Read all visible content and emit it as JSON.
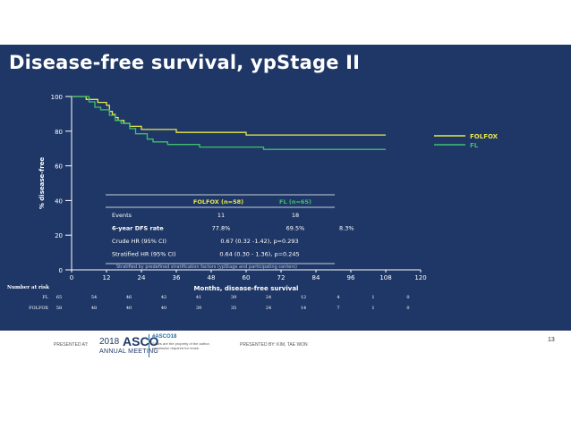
{
  "slide": {
    "title": "Disease-free survival, ypStage II",
    "bg_color": "#1f3766"
  },
  "chart_data": {
    "type": "line",
    "subtype": "kaplan-meier",
    "xlabel": "Months, disease-free survival",
    "ylabel": "% disease-free",
    "xlim": [
      0,
      120
    ],
    "ylim": [
      0,
      100
    ],
    "xticks": [
      0,
      12,
      24,
      36,
      48,
      60,
      72,
      84,
      96,
      108,
      120
    ],
    "yticks": [
      0,
      20,
      40,
      60,
      80,
      100
    ],
    "grid": false,
    "legend_position": "right",
    "series": [
      {
        "name": "FOLFOX",
        "color": "#e8e84a",
        "x": [
          0,
          5,
          5,
          9,
          9,
          12,
          12,
          13,
          13,
          14,
          14,
          15,
          15,
          16,
          16,
          18,
          18,
          20,
          20,
          24,
          24,
          36,
          36,
          48,
          48,
          60,
          60,
          72,
          72,
          84,
          84,
          96,
          96,
          108
        ],
        "y": [
          100,
          100,
          98.3,
          98.3,
          96.6,
          96.6,
          94.9,
          94.9,
          91.4,
          91.4,
          89.7,
          89.7,
          87.9,
          87.9,
          86.2,
          86.2,
          84.5,
          84.5,
          82.8,
          82.8,
          81.0,
          81.0,
          79.3,
          79.3,
          79.3,
          79.3,
          77.8,
          77.8,
          77.8,
          77.8,
          77.8,
          77.8,
          77.8,
          77.8
        ]
      },
      {
        "name": "FL",
        "color": "#3fbf6e",
        "x": [
          0,
          6,
          6,
          8,
          8,
          10,
          10,
          13,
          13,
          15,
          15,
          17,
          17,
          20,
          20,
          22,
          22,
          26,
          26,
          28,
          28,
          33,
          33,
          44,
          44,
          58,
          58,
          66,
          66,
          84,
          84,
          96,
          96,
          108
        ],
        "y": [
          100,
          100,
          96.9,
          96.9,
          93.8,
          93.8,
          92.3,
          92.3,
          89.2,
          89.2,
          86.2,
          86.2,
          84.6,
          84.6,
          81.5,
          81.5,
          78.5,
          78.5,
          75.4,
          75.4,
          73.8,
          73.8,
          72.3,
          72.3,
          70.8,
          70.8,
          70.8,
          70.8,
          69.5,
          69.5,
          69.5,
          69.5,
          69.5,
          69.5
        ]
      }
    ],
    "table": {
      "headers": [
        "",
        "FOLFOX (n=58)",
        "FL (n=65)"
      ],
      "rows": [
        [
          "Events",
          "11",
          "18"
        ],
        [
          "6-year DFS rate",
          "77.8%",
          "69.5%"
        ],
        [
          "Crude HR (95% CI)",
          "0.67 (0.32 -1.42), p=0.293",
          ""
        ],
        [
          "Stratified HR (95% CI)",
          "0.64 (0.30 - 1.36), p=0.245",
          ""
        ]
      ],
      "annotation": "8.3%",
      "footnote": "Stratified by predefined stratification factors (ypStage and participating centers)"
    },
    "number_at_risk": {
      "title": "Number at risk",
      "rows": [
        {
          "label": "FL",
          "values": [
            "65",
            "54",
            "46",
            "42",
            "41",
            "39",
            "24",
            "12",
            "4",
            "1",
            "0"
          ]
        },
        {
          "label": "FOLFOX",
          "values": [
            "58",
            "48",
            "40",
            "40",
            "39",
            "35",
            "24",
            "14",
            "7",
            "1",
            "0"
          ]
        }
      ]
    }
  },
  "footer": {
    "presented_at": "PRESENTED AT:",
    "asco_year": "2018",
    "asco_name": "ASCO",
    "asco_meeting": "ANNUAL MEETING",
    "hashtag": "#ASCO18",
    "slide_notice": "Slides are the property of the author, permission required for reuse.",
    "presented_by": "PRESENTED BY: KIM, TAE WON",
    "page_number": "13"
  }
}
